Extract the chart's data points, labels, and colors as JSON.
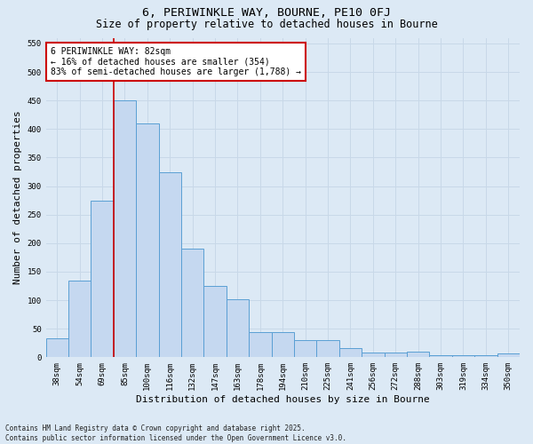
{
  "title_line1": "6, PERIWINKLE WAY, BOURNE, PE10 0FJ",
  "title_line2": "Size of property relative to detached houses in Bourne",
  "xlabel": "Distribution of detached houses by size in Bourne",
  "ylabel": "Number of detached properties",
  "categories": [
    "38sqm",
    "54sqm",
    "69sqm",
    "85sqm",
    "100sqm",
    "116sqm",
    "132sqm",
    "147sqm",
    "163sqm",
    "178sqm",
    "194sqm",
    "210sqm",
    "225sqm",
    "241sqm",
    "256sqm",
    "272sqm",
    "288sqm",
    "303sqm",
    "319sqm",
    "334sqm",
    "350sqm"
  ],
  "values": [
    33,
    135,
    275,
    450,
    410,
    325,
    190,
    125,
    102,
    44,
    44,
    30,
    30,
    16,
    8,
    8,
    10,
    4,
    3,
    3,
    7
  ],
  "bar_color": "#c5d8f0",
  "bar_edge_color": "#5a9fd4",
  "grid_color": "#c8d8e8",
  "background_color": "#dce9f5",
  "annotation_box_text": "6 PERIWINKLE WAY: 82sqm\n← 16% of detached houses are smaller (354)\n83% of semi-detached houses are larger (1,788) →",
  "annotation_box_color": "#ffffff",
  "annotation_box_edge_color": "#cc0000",
  "red_line_x": 2.5,
  "ylim": [
    0,
    560
  ],
  "yticks": [
    0,
    50,
    100,
    150,
    200,
    250,
    300,
    350,
    400,
    450,
    500,
    550
  ],
  "footer_line1": "Contains HM Land Registry data © Crown copyright and database right 2025.",
  "footer_line2": "Contains public sector information licensed under the Open Government Licence v3.0.",
  "title_fontsize": 9.5,
  "subtitle_fontsize": 8.5,
  "tick_fontsize": 6.5,
  "label_fontsize": 8,
  "annotation_fontsize": 7,
  "footer_fontsize": 5.5
}
